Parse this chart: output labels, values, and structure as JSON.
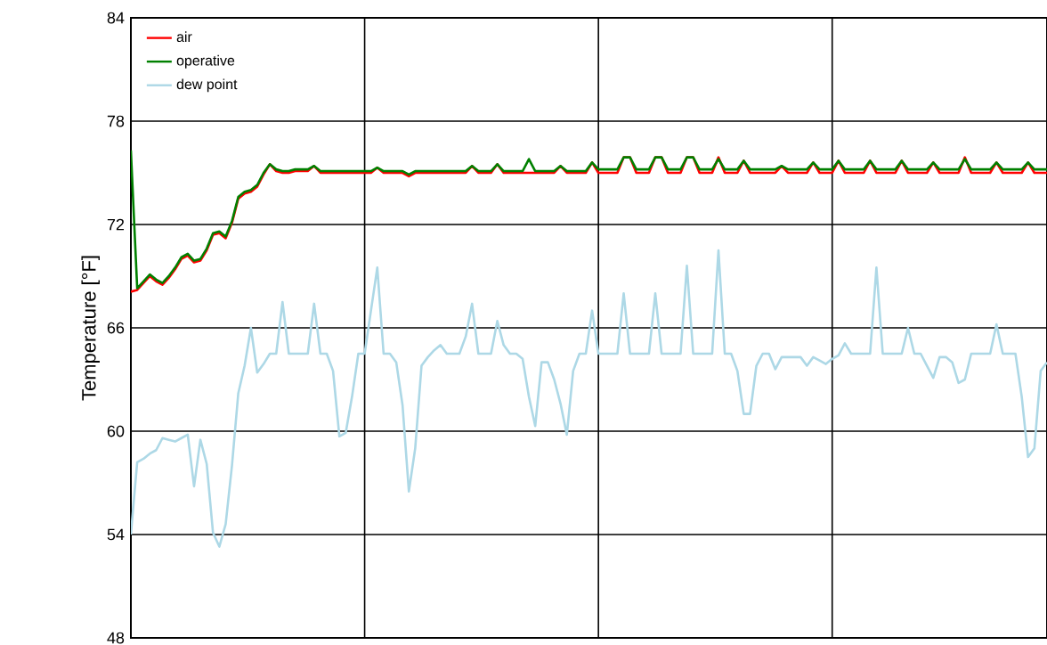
{
  "chart_data": {
    "type": "line",
    "ylabel": "Temperature [°F]",
    "ylim": [
      48,
      84
    ],
    "yticks": [
      48,
      54,
      60,
      66,
      72,
      78,
      84
    ],
    "grid": true,
    "legend": "top left",
    "categories": [
      null,
      null,
      null,
      null,
      null,
      null,
      null,
      null,
      null,
      null,
      null,
      null,
      null,
      null,
      null,
      null,
      null,
      null,
      null,
      null,
      null,
      null,
      null,
      null,
      null,
      null,
      null,
      null,
      null,
      null,
      null,
      null,
      null,
      null,
      null,
      null,
      null,
      null,
      null,
      null,
      null,
      null,
      null,
      null,
      null,
      null,
      null,
      null,
      null,
      null,
      null,
      null,
      null,
      null,
      null,
      null,
      null,
      null,
      null,
      null,
      null,
      null,
      null,
      null,
      null,
      null,
      null,
      null,
      null,
      null,
      null,
      null,
      null,
      null,
      null,
      null,
      null,
      null,
      null,
      null,
      null,
      null,
      null,
      null,
      null,
      null,
      null,
      null,
      null,
      null,
      null,
      null,
      null,
      null,
      null,
      null,
      null,
      null,
      null,
      null,
      null,
      null,
      null,
      null,
      null,
      null,
      null,
      null,
      null,
      null,
      null,
      null,
      null,
      null,
      null,
      null,
      null,
      null,
      null,
      null,
      null,
      null,
      null,
      null,
      null,
      null,
      null,
      null,
      null,
      null,
      null,
      null,
      null,
      null,
      null,
      null,
      null,
      null,
      null,
      null,
      null,
      null,
      null,
      null,
      null,
      null
    ],
    "series": [
      {
        "name": "air",
        "color": "#ff0000",
        "values": [
          68.1,
          68.2,
          68.6,
          69.0,
          68.7,
          68.5,
          68.9,
          69.4,
          70.0,
          70.2,
          69.8,
          69.9,
          70.5,
          71.4,
          71.5,
          71.2,
          72.1,
          73.5,
          73.8,
          73.9,
          74.2,
          74.9,
          75.5,
          75.1,
          75.0,
          75.0,
          75.1,
          75.1,
          75.1,
          75.4,
          75.0,
          75.0,
          75.0,
          75.0,
          75.0,
          75.0,
          75.0,
          75.0,
          75.0,
          75.3,
          75.0,
          75.0,
          75.0,
          75.0,
          74.8,
          75.0,
          75.0,
          75.0,
          75.0,
          75.0,
          75.0,
          75.0,
          75.0,
          75.0,
          75.4,
          75.0,
          75.0,
          75.0,
          75.5,
          75.0,
          75.0,
          75.0,
          75.0,
          null,
          75.0,
          75.0,
          75.0,
          75.0,
          75.4,
          75.0,
          75.0,
          75.0,
          75.0,
          75.6,
          75.0,
          75.0,
          75.0,
          75.0,
          75.9,
          75.9,
          75.0,
          75.0,
          75.0,
          75.9,
          75.9,
          75.0,
          75.0,
          75.0,
          75.9,
          75.9,
          75.0,
          75.0,
          75.0,
          75.9,
          75.0,
          75.0,
          75.0,
          75.7,
          75.0,
          75.0,
          75.0,
          75.0,
          75.0,
          75.4,
          75.0,
          75.0,
          75.0,
          75.0,
          75.6,
          75.0,
          75.0,
          75.0,
          75.7,
          75.0,
          75.0,
          75.0,
          75.0,
          75.7,
          75.0,
          75.0,
          75.0,
          75.0,
          75.7,
          75.0,
          75.0,
          75.0,
          75.0,
          75.6,
          75.0,
          75.0,
          75.0,
          75.0,
          75.9,
          75.0,
          75.0,
          75.0,
          75.0,
          75.6,
          75.0,
          75.0,
          75.0,
          75.0,
          75.6,
          75.0,
          75.0,
          75.0
        ]
      },
      {
        "name": "operative",
        "color": "#008000",
        "values": [
          76.3,
          68.3,
          68.7,
          69.1,
          68.8,
          68.6,
          69.0,
          69.5,
          70.1,
          70.3,
          69.9,
          70.0,
          70.6,
          71.5,
          71.6,
          71.3,
          72.2,
          73.6,
          73.9,
          74.0,
          74.3,
          75.0,
          75.5,
          75.2,
          75.1,
          75.1,
          75.2,
          75.2,
          75.2,
          75.4,
          75.1,
          75.1,
          75.1,
          75.1,
          75.1,
          75.1,
          75.1,
          75.1,
          75.1,
          75.3,
          75.1,
          75.1,
          75.1,
          75.1,
          74.9,
          75.1,
          75.1,
          75.1,
          75.1,
          75.1,
          75.1,
          75.1,
          75.1,
          75.1,
          75.4,
          75.1,
          75.1,
          75.1,
          75.5,
          75.1,
          75.1,
          75.1,
          75.1,
          75.8,
          75.1,
          75.1,
          75.1,
          75.1,
          75.4,
          75.1,
          75.1,
          75.1,
          75.1,
          75.6,
          75.2,
          75.2,
          75.2,
          75.2,
          75.9,
          75.9,
          75.2,
          75.2,
          75.2,
          75.9,
          75.9,
          75.2,
          75.2,
          75.2,
          75.9,
          75.9,
          75.2,
          75.2,
          75.2,
          75.8,
          75.2,
          75.2,
          75.2,
          75.7,
          75.2,
          75.2,
          75.2,
          75.2,
          75.2,
          75.4,
          75.2,
          75.2,
          75.2,
          75.2,
          75.6,
          75.2,
          75.2,
          75.2,
          75.7,
          75.2,
          75.2,
          75.2,
          75.2,
          75.7,
          75.2,
          75.2,
          75.2,
          75.2,
          75.7,
          75.2,
          75.2,
          75.2,
          75.2,
          75.6,
          75.2,
          75.2,
          75.2,
          75.2,
          75.8,
          75.2,
          75.2,
          75.2,
          75.2,
          75.6,
          75.2,
          75.2,
          75.2,
          75.2,
          75.6,
          75.2,
          75.2,
          75.2
        ]
      },
      {
        "name": "dew point",
        "color": "#add8e6",
        "values": [
          54.0,
          58.2,
          58.4,
          58.7,
          58.9,
          59.6,
          59.5,
          59.4,
          59.6,
          59.8,
          56.8,
          59.5,
          58.1,
          54.1,
          53.3,
          54.6,
          58.0,
          62.2,
          63.8,
          66.0,
          63.4,
          63.9,
          64.5,
          64.5,
          67.5,
          64.5,
          64.5,
          64.5,
          64.5,
          67.4,
          64.5,
          64.5,
          63.5,
          59.7,
          59.9,
          62.0,
          64.5,
          64.5,
          67.0,
          69.5,
          64.5,
          64.5,
          64.0,
          61.5,
          56.5,
          59.0,
          63.8,
          64.3,
          64.7,
          65.0,
          64.5,
          64.5,
          64.5,
          65.5,
          67.4,
          64.5,
          64.5,
          64.5,
          66.4,
          65.0,
          64.5,
          64.5,
          64.2,
          62.0,
          60.3,
          64.0,
          64.0,
          63.0,
          61.6,
          59.8,
          63.5,
          64.5,
          64.5,
          67.0,
          64.5,
          64.5,
          64.5,
          64.5,
          68.0,
          64.5,
          64.5,
          64.5,
          64.5,
          68.0,
          64.5,
          64.5,
          64.5,
          64.5,
          69.6,
          64.5,
          64.5,
          64.5,
          64.5,
          70.5,
          64.5,
          64.5,
          63.5,
          61.0,
          61.0,
          63.8,
          64.5,
          64.5,
          63.6,
          64.3,
          64.3,
          64.3,
          64.3,
          63.8,
          64.3,
          64.1,
          63.9,
          64.2,
          64.4,
          65.1,
          64.5,
          64.5,
          64.5,
          64.5,
          69.5,
          64.5,
          64.5,
          64.5,
          64.5,
          66.0,
          64.5,
          64.5,
          63.8,
          63.1,
          64.3,
          64.3,
          64.0,
          62.8,
          63.0,
          64.5,
          64.5,
          64.5,
          64.5,
          66.2,
          64.5,
          64.5,
          64.5,
          62.0,
          58.5,
          59.0,
          63.5,
          64.0
        ]
      }
    ]
  }
}
